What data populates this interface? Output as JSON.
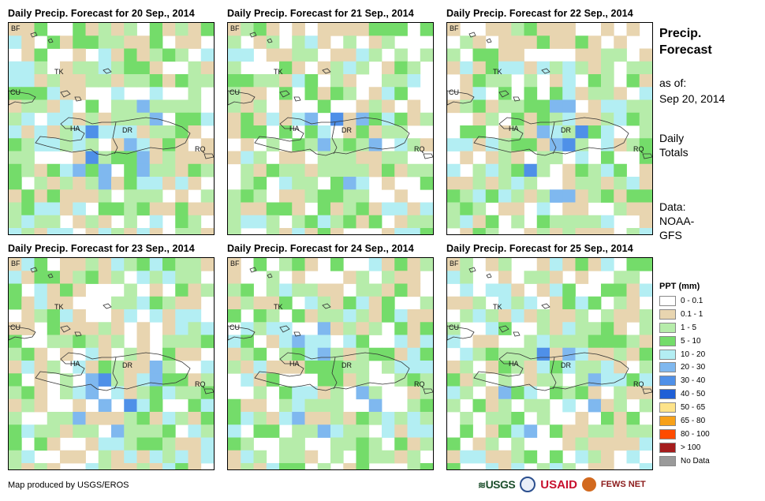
{
  "panels": [
    {
      "title": "Daily Precip. Forecast for 20 Sep., 2014",
      "seed": 11
    },
    {
      "title": "Daily Precip. Forecast for 21 Sep., 2014",
      "seed": 23
    },
    {
      "title": "Daily Precip. Forecast for 22 Sep., 2014",
      "seed": 37
    },
    {
      "title": "Daily Precip. Forecast for 23 Sep., 2014",
      "seed": 41
    },
    {
      "title": "Daily Precip. Forecast for 24 Sep., 2014",
      "seed": 53
    },
    {
      "title": "Daily Precip. Forecast for 25 Sep., 2014",
      "seed": 67
    }
  ],
  "map_labels": {
    "bf": "BF",
    "tk": "TK",
    "cu": "CU",
    "ha": "HA",
    "dr": "DR",
    "rq": "RQ"
  },
  "side": {
    "title_line1": "Precip.",
    "title_line2": "Forecast",
    "asof_label": "as of:",
    "asof_date": "Sep 20, 2014",
    "totals_line1": "Daily",
    "totals_line2": "Totals",
    "data_line1": "Data:",
    "data_line2": "NOAA-",
    "data_line3": "GFS"
  },
  "legend": {
    "title": "PPT (mm)",
    "items": [
      {
        "label": "0 - 0.1",
        "color": "#ffffff"
      },
      {
        "label": "0.1 - 1",
        "color": "#e8d5b0"
      },
      {
        "label": "1 - 5",
        "color": "#b6ecaa"
      },
      {
        "label": "5 - 10",
        "color": "#74dc6a"
      },
      {
        "label": "10 - 20",
        "color": "#b3eef3"
      },
      {
        "label": "20 - 30",
        "color": "#7fb8ef"
      },
      {
        "label": "30 - 40",
        "color": "#4f90e8"
      },
      {
        "label": "40 - 50",
        "color": "#1f5fd6"
      },
      {
        "label": "50 - 65",
        "color": "#fde38a"
      },
      {
        "label": "65 - 80",
        "color": "#f7a11a"
      },
      {
        "label": "80 - 100",
        "color": "#ff4b00"
      },
      {
        "label": "> 100",
        "color": "#a51c1c"
      },
      {
        "label": "No Data",
        "color": "#9a9a9a"
      }
    ]
  },
  "credit": "Map produced by USGS/EROS",
  "logos": {
    "usgs": "USGS",
    "usaid": "USAID",
    "fewsnet": "FEWS NET"
  }
}
